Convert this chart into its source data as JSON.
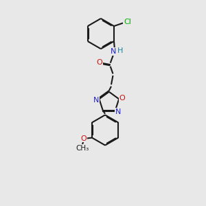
{
  "bg_color": "#e8e8e8",
  "bond_color": "#1a1a1a",
  "N_color": "#2020cc",
  "O_color": "#cc1010",
  "Cl_color": "#00aa00",
  "H_color": "#2080a0",
  "lw": 1.5,
  "dbo": 0.055,
  "xlim": [
    0,
    10
  ],
  "ylim": [
    0,
    14
  ],
  "figsize": [
    3.0,
    3.0
  ],
  "dpi": 100
}
